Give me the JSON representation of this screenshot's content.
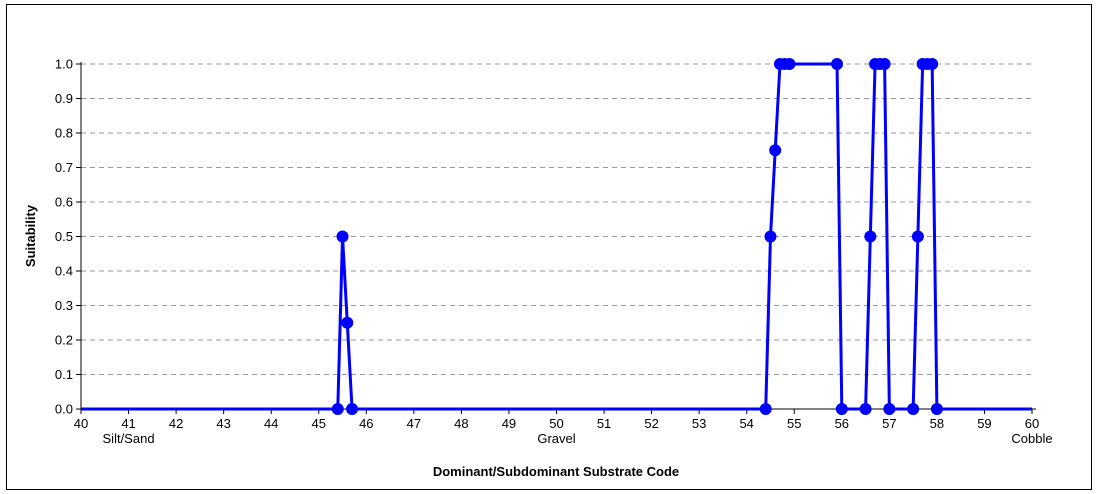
{
  "chart_data": {
    "type": "line",
    "title": "",
    "xlabel": "Dominant/Subdominant Substrate Code",
    "ylabel": "Suitability",
    "xlim": [
      40,
      60
    ],
    "ylim": [
      0,
      1.0
    ],
    "x_ticks": [
      "40",
      "41",
      "42",
      "43",
      "44",
      "45",
      "46",
      "47",
      "48",
      "49",
      "50",
      "51",
      "52",
      "53",
      "54",
      "55",
      "56",
      "57",
      "58",
      "59",
      "60"
    ],
    "y_ticks": [
      "0.0",
      "0.1",
      "0.2",
      "0.3",
      "0.4",
      "0.5",
      "0.6",
      "0.7",
      "0.8",
      "0.9",
      "1.0"
    ],
    "category_labels": [
      {
        "x": 41,
        "text": "Silt/Sand"
      },
      {
        "x": 50,
        "text": "Gravel"
      },
      {
        "x": 60,
        "text": "Cobble"
      }
    ],
    "grid": "horizontal-dashed",
    "series": [
      {
        "color": "#0000ff",
        "line": [
          [
            40,
            0
          ],
          [
            45.4,
            0
          ],
          [
            45.5,
            0.5
          ],
          [
            45.6,
            0.25
          ],
          [
            45.7,
            0
          ],
          [
            54.4,
            0
          ],
          [
            54.5,
            0.5
          ],
          [
            54.6,
            0.75
          ],
          [
            54.7,
            1.0
          ],
          [
            54.8,
            1.0
          ],
          [
            54.9,
            1.0
          ],
          [
            55.9,
            1.0
          ],
          [
            56,
            0
          ],
          [
            56.5,
            0
          ],
          [
            56.6,
            0.5
          ],
          [
            56.7,
            1.0
          ],
          [
            56.8,
            1.0
          ],
          [
            56.9,
            1.0
          ],
          [
            57,
            0
          ],
          [
            57.5,
            0
          ],
          [
            57.6,
            0.5
          ],
          [
            57.7,
            1.0
          ],
          [
            57.8,
            1.0
          ],
          [
            57.9,
            1.0
          ],
          [
            58,
            0
          ],
          [
            60,
            0
          ]
        ],
        "markers": [
          [
            45.4,
            0
          ],
          [
            45.5,
            0.5
          ],
          [
            45.6,
            0.25
          ],
          [
            45.7,
            0
          ],
          [
            54.4,
            0
          ],
          [
            54.5,
            0.5
          ],
          [
            54.6,
            0.75
          ],
          [
            54.7,
            1.0
          ],
          [
            54.8,
            1.0
          ],
          [
            54.9,
            1.0
          ],
          [
            55.9,
            1.0
          ],
          [
            56,
            0
          ],
          [
            56.5,
            0
          ],
          [
            56.6,
            0.5
          ],
          [
            56.7,
            1.0
          ],
          [
            56.8,
            1.0
          ],
          [
            56.9,
            1.0
          ],
          [
            57,
            0
          ],
          [
            57.5,
            0
          ],
          [
            57.6,
            0.5
          ],
          [
            57.7,
            1.0
          ],
          [
            57.8,
            1.0
          ],
          [
            57.9,
            1.0
          ],
          [
            58,
            0
          ]
        ]
      }
    ]
  }
}
